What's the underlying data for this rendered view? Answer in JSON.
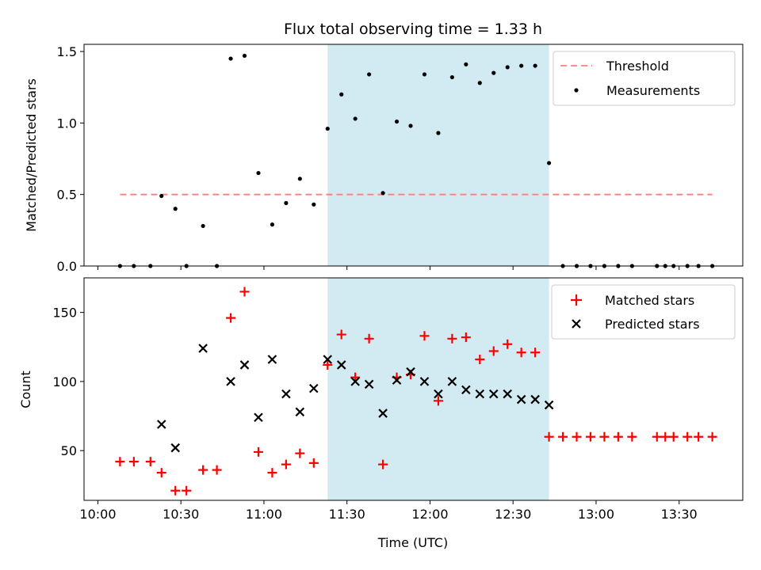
{
  "chart_data": {
    "type": "scatter",
    "title": "Flux total observing time = 1.33 h",
    "xlabel": "Time (UTC)",
    "x_tick_labels": [
      "10:00",
      "10:30",
      "11:00",
      "11:30",
      "12:00",
      "12:30",
      "13:00",
      "13:30"
    ],
    "x_ticks": [
      "10:00",
      "10:30",
      "11:00",
      "11:30",
      "12:00",
      "12:30",
      "13:00",
      "13:30"
    ],
    "xlim": [
      "09:55",
      "13:53"
    ],
    "highlight_span": {
      "start": "11:23",
      "end": "12:43",
      "color": "#add8e6"
    },
    "colors": {
      "threshold": "#ff7f7f",
      "measurements": "#000000",
      "matched": "#ff0000",
      "predicted": "#000000",
      "span": "#add8e6"
    },
    "panels": [
      {
        "ylabel": "Matched/Predicted stars",
        "ylim": [
          0,
          1.55
        ],
        "y_ticks": [
          0.0,
          0.5,
          1.0,
          1.5
        ],
        "y_tick_labels": [
          "0.0",
          "0.5",
          "1.0",
          "1.5"
        ],
        "legend_position": "top-right",
        "threshold": {
          "name": "Threshold",
          "value": 0.5,
          "x_start": "10:08",
          "x_end": "13:42"
        },
        "series": [
          {
            "name": "Measurements",
            "marker": "dot",
            "x": [
              "10:08",
              "10:13",
              "10:19",
              "10:23",
              "10:28",
              "10:32",
              "10:38",
              "10:43",
              "10:48",
              "10:53",
              "10:58",
              "11:03",
              "11:08",
              "11:13",
              "11:18",
              "11:23",
              "11:28",
              "11:33",
              "11:38",
              "11:43",
              "11:48",
              "11:53",
              "11:58",
              "12:03",
              "12:08",
              "12:13",
              "12:18",
              "12:23",
              "12:28",
              "12:33",
              "12:38",
              "12:43",
              "12:48",
              "12:53",
              "12:58",
              "13:03",
              "13:08",
              "13:13",
              "13:22",
              "13:25",
              "13:28",
              "13:33",
              "13:37",
              "13:42"
            ],
            "y": [
              0,
              0,
              0,
              0.49,
              0.4,
              0,
              0.28,
              0,
              1.45,
              1.47,
              0.65,
              0.29,
              0.44,
              0.61,
              0.43,
              0.96,
              1.2,
              1.03,
              1.34,
              0.51,
              1.01,
              0.98,
              1.34,
              0.93,
              1.32,
              1.41,
              1.28,
              1.35,
              1.39,
              1.4,
              1.4,
              0.72,
              0,
              0,
              0,
              0,
              0,
              0,
              0,
              0,
              0,
              0,
              0,
              0
            ]
          }
        ]
      },
      {
        "ylabel": "Count",
        "ylim": [
          14,
          175
        ],
        "y_ticks": [
          50,
          100,
          150
        ],
        "y_tick_labels": [
          "50",
          "100",
          "150"
        ],
        "legend_position": "top-right",
        "series": [
          {
            "name": "Matched stars",
            "marker": "plus",
            "x": [
              "10:08",
              "10:13",
              "10:19",
              "10:23",
              "10:28",
              "10:32",
              "10:38",
              "10:43",
              "10:48",
              "10:53",
              "10:58",
              "11:03",
              "11:08",
              "11:13",
              "11:18",
              "11:23",
              "11:28",
              "11:33",
              "11:38",
              "11:43",
              "11:48",
              "11:53",
              "11:58",
              "12:03",
              "12:08",
              "12:13",
              "12:18",
              "12:23",
              "12:28",
              "12:33",
              "12:38",
              "12:43",
              "12:48",
              "12:53",
              "12:58",
              "13:03",
              "13:08",
              "13:13",
              "13:22",
              "13:25",
              "13:28",
              "13:33",
              "13:37",
              "13:42"
            ],
            "y": [
              42,
              42,
              42,
              34,
              21,
              21,
              36,
              36,
              146,
              165,
              49,
              34,
              40,
              48,
              41,
              112,
              134,
              103,
              131,
              40,
              103,
              105,
              133,
              86,
              131,
              132,
              116,
              122,
              127,
              121,
              121,
              60,
              60,
              60,
              60,
              60,
              60,
              60,
              60,
              60,
              60,
              60,
              60,
              60
            ]
          },
          {
            "name": "Predicted stars",
            "marker": "x",
            "x": [
              "10:23",
              "10:28",
              "10:38",
              "10:48",
              "10:53",
              "10:58",
              "11:03",
              "11:08",
              "11:13",
              "11:18",
              "11:23",
              "11:28",
              "11:33",
              "11:38",
              "11:43",
              "11:48",
              "11:53",
              "11:58",
              "12:03",
              "12:08",
              "12:13",
              "12:18",
              "12:23",
              "12:28",
              "12:33",
              "12:38",
              "12:43"
            ],
            "y": [
              69,
              52,
              124,
              100,
              112,
              74,
              116,
              91,
              78,
              95,
              116,
              112,
              100,
              98,
              77,
              101,
              107,
              100,
              91,
              100,
              94,
              91,
              91,
              91,
              87,
              87,
              83
            ]
          }
        ]
      }
    ]
  }
}
